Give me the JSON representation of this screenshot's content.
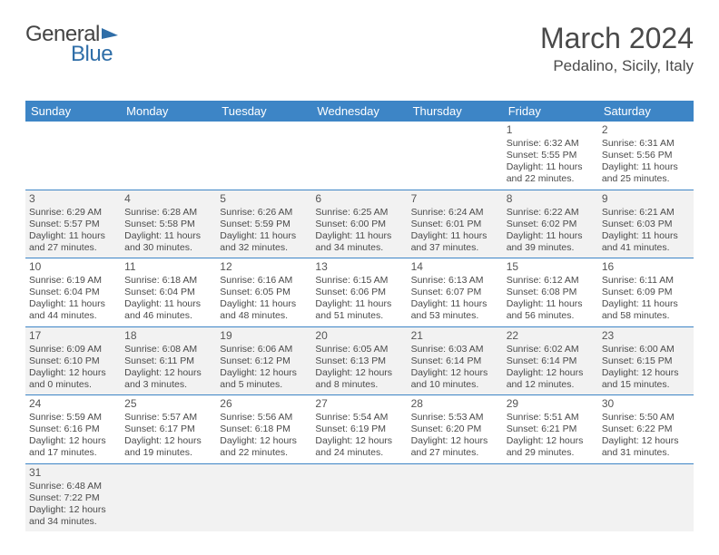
{
  "logo": {
    "text1": "General",
    "text2": "Blue"
  },
  "title": "March 2024",
  "location": "Pedalino, Sicily, Italy",
  "colors": {
    "header_bg": "#3d85c6",
    "header_fg": "#ffffff",
    "row_alt_bg": "#f2f2f2",
    "border": "#3d85c6",
    "logo_blue": "#2f6ea8",
    "text": "#4a4a4a"
  },
  "weekdays": [
    "Sunday",
    "Monday",
    "Tuesday",
    "Wednesday",
    "Thursday",
    "Friday",
    "Saturday"
  ],
  "cells": [
    [
      null,
      null,
      null,
      null,
      null,
      {
        "n": "1",
        "sr": "6:32 AM",
        "ss": "5:55 PM",
        "dl": "11 hours and 22 minutes."
      },
      {
        "n": "2",
        "sr": "6:31 AM",
        "ss": "5:56 PM",
        "dl": "11 hours and 25 minutes."
      }
    ],
    [
      {
        "n": "3",
        "sr": "6:29 AM",
        "ss": "5:57 PM",
        "dl": "11 hours and 27 minutes."
      },
      {
        "n": "4",
        "sr": "6:28 AM",
        "ss": "5:58 PM",
        "dl": "11 hours and 30 minutes."
      },
      {
        "n": "5",
        "sr": "6:26 AM",
        "ss": "5:59 PM",
        "dl": "11 hours and 32 minutes."
      },
      {
        "n": "6",
        "sr": "6:25 AM",
        "ss": "6:00 PM",
        "dl": "11 hours and 34 minutes."
      },
      {
        "n": "7",
        "sr": "6:24 AM",
        "ss": "6:01 PM",
        "dl": "11 hours and 37 minutes."
      },
      {
        "n": "8",
        "sr": "6:22 AM",
        "ss": "6:02 PM",
        "dl": "11 hours and 39 minutes."
      },
      {
        "n": "9",
        "sr": "6:21 AM",
        "ss": "6:03 PM",
        "dl": "11 hours and 41 minutes."
      }
    ],
    [
      {
        "n": "10",
        "sr": "6:19 AM",
        "ss": "6:04 PM",
        "dl": "11 hours and 44 minutes."
      },
      {
        "n": "11",
        "sr": "6:18 AM",
        "ss": "6:04 PM",
        "dl": "11 hours and 46 minutes."
      },
      {
        "n": "12",
        "sr": "6:16 AM",
        "ss": "6:05 PM",
        "dl": "11 hours and 48 minutes."
      },
      {
        "n": "13",
        "sr": "6:15 AM",
        "ss": "6:06 PM",
        "dl": "11 hours and 51 minutes."
      },
      {
        "n": "14",
        "sr": "6:13 AM",
        "ss": "6:07 PM",
        "dl": "11 hours and 53 minutes."
      },
      {
        "n": "15",
        "sr": "6:12 AM",
        "ss": "6:08 PM",
        "dl": "11 hours and 56 minutes."
      },
      {
        "n": "16",
        "sr": "6:11 AM",
        "ss": "6:09 PM",
        "dl": "11 hours and 58 minutes."
      }
    ],
    [
      {
        "n": "17",
        "sr": "6:09 AM",
        "ss": "6:10 PM",
        "dl": "12 hours and 0 minutes."
      },
      {
        "n": "18",
        "sr": "6:08 AM",
        "ss": "6:11 PM",
        "dl": "12 hours and 3 minutes."
      },
      {
        "n": "19",
        "sr": "6:06 AM",
        "ss": "6:12 PM",
        "dl": "12 hours and 5 minutes."
      },
      {
        "n": "20",
        "sr": "6:05 AM",
        "ss": "6:13 PM",
        "dl": "12 hours and 8 minutes."
      },
      {
        "n": "21",
        "sr": "6:03 AM",
        "ss": "6:14 PM",
        "dl": "12 hours and 10 minutes."
      },
      {
        "n": "22",
        "sr": "6:02 AM",
        "ss": "6:14 PM",
        "dl": "12 hours and 12 minutes."
      },
      {
        "n": "23",
        "sr": "6:00 AM",
        "ss": "6:15 PM",
        "dl": "12 hours and 15 minutes."
      }
    ],
    [
      {
        "n": "24",
        "sr": "5:59 AM",
        "ss": "6:16 PM",
        "dl": "12 hours and 17 minutes."
      },
      {
        "n": "25",
        "sr": "5:57 AM",
        "ss": "6:17 PM",
        "dl": "12 hours and 19 minutes."
      },
      {
        "n": "26",
        "sr": "5:56 AM",
        "ss": "6:18 PM",
        "dl": "12 hours and 22 minutes."
      },
      {
        "n": "27",
        "sr": "5:54 AM",
        "ss": "6:19 PM",
        "dl": "12 hours and 24 minutes."
      },
      {
        "n": "28",
        "sr": "5:53 AM",
        "ss": "6:20 PM",
        "dl": "12 hours and 27 minutes."
      },
      {
        "n": "29",
        "sr": "5:51 AM",
        "ss": "6:21 PM",
        "dl": "12 hours and 29 minutes."
      },
      {
        "n": "30",
        "sr": "5:50 AM",
        "ss": "6:22 PM",
        "dl": "12 hours and 31 minutes."
      }
    ],
    [
      {
        "n": "31",
        "sr": "6:48 AM",
        "ss": "7:22 PM",
        "dl": "12 hours and 34 minutes."
      },
      null,
      null,
      null,
      null,
      null,
      null
    ]
  ],
  "labels": {
    "sunrise": "Sunrise:",
    "sunset": "Sunset:",
    "daylight": "Daylight:"
  }
}
